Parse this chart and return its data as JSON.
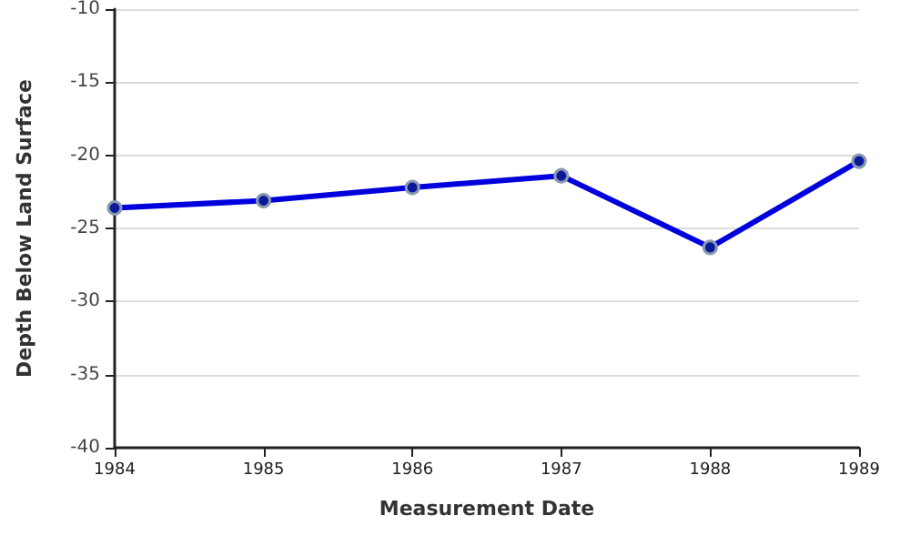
{
  "chart_data": {
    "type": "line",
    "xlabel": "Measurement Date",
    "ylabel": "Depth Below Land Surface",
    "x": [
      1984,
      1985,
      1986,
      1987,
      1988,
      1989
    ],
    "series": [
      {
        "color": "#0000dd",
        "values": [
          -23.6,
          -23.1,
          -22.2,
          -21.4,
          -26.3,
          -20.4
        ]
      }
    ],
    "xlim": [
      1984,
      1989
    ],
    "xticks": [
      1984,
      1985,
      1986,
      1987,
      1988,
      1989
    ],
    "ylim": [
      -40,
      -10
    ],
    "yticks": [
      -40,
      -35,
      -30,
      -25,
      -20,
      -15,
      -10
    ],
    "grid": "y",
    "marker": "circle",
    "line_style": "solid"
  }
}
